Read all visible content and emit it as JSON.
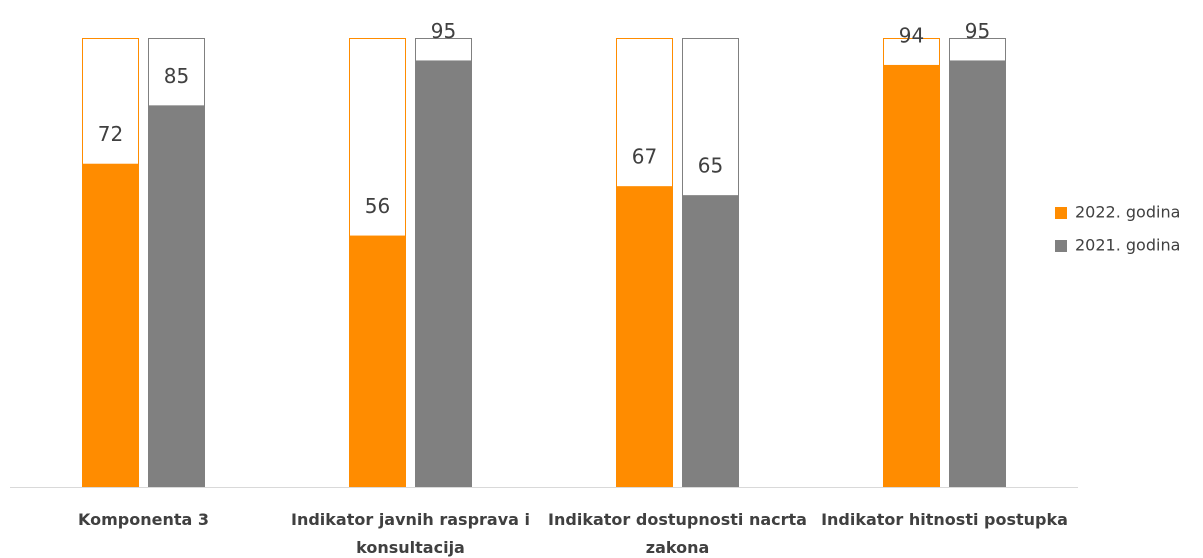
{
  "chart_data": {
    "type": "bar",
    "categories": [
      "Komponenta 3",
      "Indikator javnih rasprava i konsultacija",
      "Indikator dostupnosti nacrta zakona",
      "Indikator hitnosti postupka"
    ],
    "series": [
      {
        "name": "2022. godina",
        "color": "#ff8c00",
        "values": [
          72,
          56,
          67,
          94
        ]
      },
      {
        "name": "2021. godina",
        "color": "#808080",
        "values": [
          85,
          95,
          65,
          95
        ]
      }
    ],
    "ylim": [
      0,
      100
    ],
    "legend": "right"
  }
}
